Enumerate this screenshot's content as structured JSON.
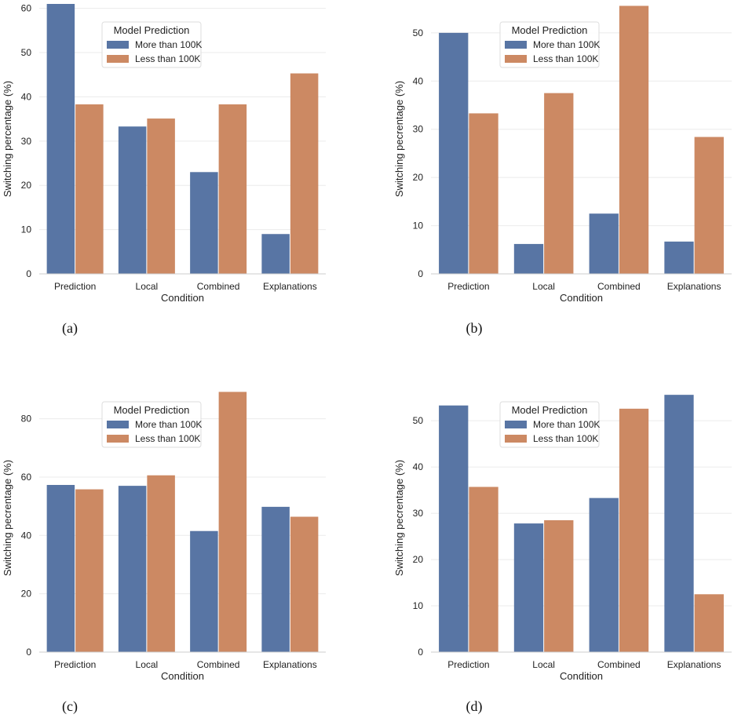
{
  "colors": {
    "more": "#5875a4",
    "less": "#cc8963",
    "grid": "#ebebeb",
    "legend_border": "#dddddd"
  },
  "chart_data": [
    {
      "type": "bar",
      "caption": "(a)",
      "categories": [
        "Prediction",
        "Local",
        "Combined",
        "Explanations"
      ],
      "series": [
        {
          "name": "More than 100K",
          "values": [
            61,
            33.3,
            23,
            9
          ]
        },
        {
          "name": "Less than 100K",
          "values": [
            38.3,
            35.1,
            38.3,
            45.3
          ]
        }
      ],
      "xlabel": "Condition",
      "ylabel": "Switching percentage (%)",
      "ylim": [
        0,
        61
      ],
      "yticks": [
        0,
        10,
        20,
        30,
        40,
        50,
        60
      ],
      "legend_title": "Model Prediction",
      "legend_position": "top-center"
    },
    {
      "type": "bar",
      "caption": "(b)",
      "categories": [
        "Prediction",
        "Local",
        "Combined",
        "Explanations"
      ],
      "series": [
        {
          "name": "More than 100K",
          "values": [
            50,
            6.2,
            12.5,
            6.7
          ]
        },
        {
          "name": "Less than 100K",
          "values": [
            33.3,
            37.5,
            55.6,
            28.4
          ]
        }
      ],
      "xlabel": "Condition",
      "ylabel": "Switching pecrentage (%)",
      "ylim": [
        0,
        56
      ],
      "yticks": [
        0,
        10,
        20,
        30,
        40,
        50
      ],
      "legend_title": "Model Prediction",
      "legend_position": "top-center"
    },
    {
      "type": "bar",
      "caption": "(c)",
      "categories": [
        "Prediction",
        "Local",
        "Combined",
        "Explanations"
      ],
      "series": [
        {
          "name": "More than 100K",
          "values": [
            57.3,
            57,
            41.5,
            49.8
          ]
        },
        {
          "name": "Less than 100K",
          "values": [
            55.8,
            60.6,
            89.2,
            46.4
          ]
        }
      ],
      "xlabel": "Condition",
      "ylabel": "Switching pecrentage (%)",
      "ylim": [
        0,
        92
      ],
      "yticks": [
        0,
        20,
        40,
        60,
        80
      ],
      "legend_title": "Model Prediction",
      "legend_position": "top-center"
    },
    {
      "type": "bar",
      "caption": "(d)",
      "categories": [
        "Prediction",
        "Local",
        "Combined",
        "Explanations"
      ],
      "series": [
        {
          "name": "More than 100K",
          "values": [
            53.3,
            27.8,
            33.3,
            55.6
          ]
        },
        {
          "name": "Less than 100K",
          "values": [
            35.7,
            28.5,
            52.6,
            12.5
          ]
        }
      ],
      "xlabel": "Condition",
      "ylabel": "Switching pecrentage (%)",
      "ylim": [
        0,
        58
      ],
      "yticks": [
        0,
        10,
        20,
        30,
        40,
        50
      ],
      "legend_title": "Model Prediction",
      "legend_position": "top-center"
    }
  ]
}
